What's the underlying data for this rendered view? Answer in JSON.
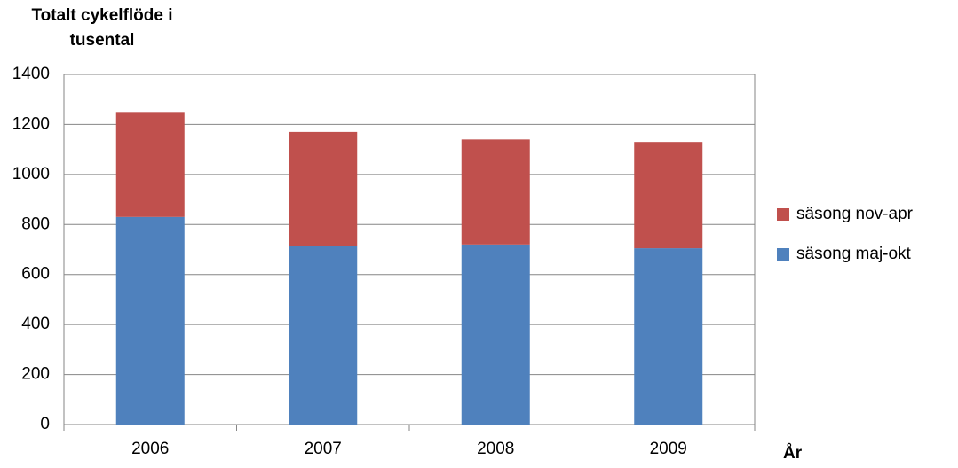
{
  "chart_data": {
    "type": "stacked-bar",
    "title": "Totalt cykelflöde i tusental",
    "x_label": "År",
    "categories": [
      "2006",
      "2007",
      "2008",
      "2009"
    ],
    "series": [
      {
        "name": "säsong maj-okt",
        "color": "#4f81bd",
        "values": [
          830,
          715,
          720,
          705
        ]
      },
      {
        "name": "säsong nov-apr",
        "color": "#c0504d",
        "values": [
          420,
          455,
          420,
          425
        ]
      }
    ],
    "ylim": [
      0,
      1400
    ],
    "yticks": [
      0,
      200,
      400,
      600,
      800,
      1000,
      1200,
      1400
    ],
    "grid": true,
    "legend": "right"
  }
}
